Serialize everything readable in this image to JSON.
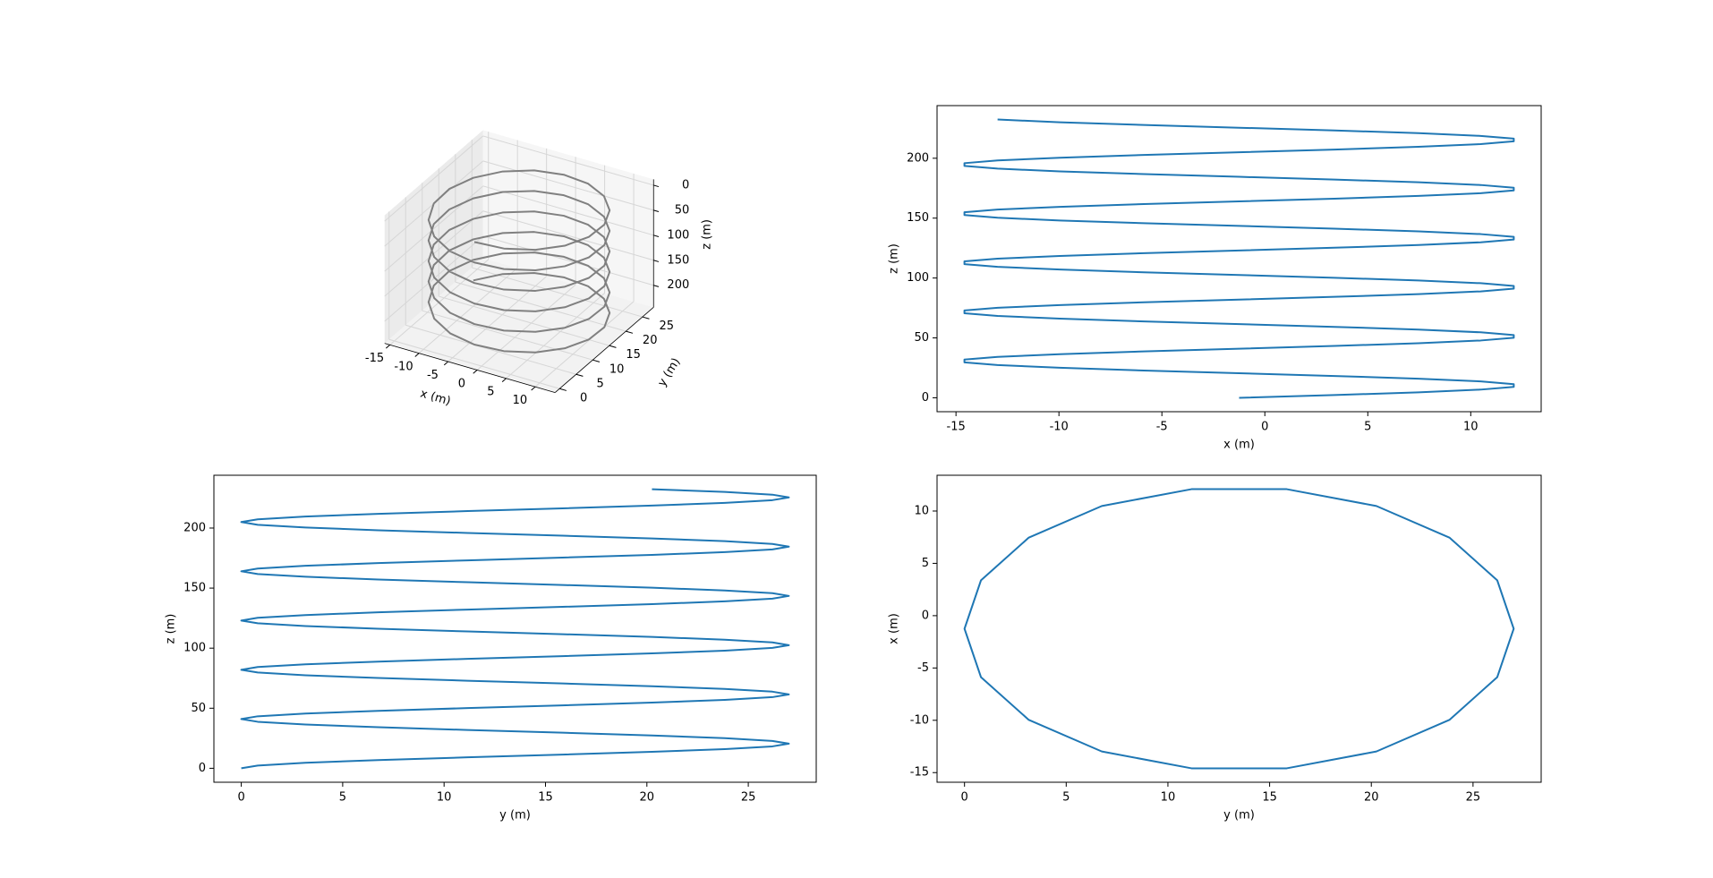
{
  "chart_data": [
    {
      "type": "line3d",
      "color": "#808080",
      "xlabel": "x (m)",
      "ylabel": "y (m)",
      "zlabel": "z (m)",
      "xlim": [
        -15.92,
        13.42
      ],
      "ylim": [
        -1.35,
        28.35
      ],
      "zlim": [
        -11.62,
        243.95
      ],
      "z_inverted": true,
      "xticks": [
        -15,
        -10,
        -5,
        0,
        5,
        10
      ],
      "yticks": [
        0,
        5,
        10,
        15,
        20,
        25
      ],
      "zticks": [
        0,
        50,
        100,
        150,
        200
      ],
      "x": [
        -1.25,
        3.38,
        7.46,
        10.48,
        12.09,
        12.09,
        10.48,
        7.46,
        3.38,
        -1.25,
        -5.88,
        -9.96,
        -12.98,
        -14.59,
        -14.59,
        -12.98,
        -9.96,
        -5.88,
        -1.25,
        3.38,
        7.46,
        10.48,
        12.09,
        12.09,
        10.48,
        7.46,
        3.38,
        -1.25,
        -5.88,
        -9.96,
        -12.98,
        -14.59,
        -14.59,
        -12.98,
        -9.96,
        -5.88,
        -1.25,
        3.38,
        7.46,
        10.48,
        12.09,
        12.09,
        10.48,
        7.46,
        3.38,
        -1.25,
        -5.88,
        -9.96,
        -12.98,
        -14.59,
        -14.59,
        -12.98,
        -9.96,
        -5.88,
        -1.25,
        3.38,
        7.46,
        10.48,
        12.09,
        12.09,
        10.48,
        7.46,
        3.38,
        -1.25,
        -5.88,
        -9.96,
        -12.98,
        -14.59,
        -14.59,
        -12.98,
        -9.96,
        -5.88,
        -1.25,
        3.38,
        7.46,
        10.48,
        12.09,
        12.09,
        10.48,
        7.46,
        3.38,
        -1.25,
        -5.88,
        -9.96,
        -12.98,
        -14.59,
        -14.59,
        -12.98,
        -9.96,
        -5.88,
        -1.25,
        3.38,
        7.46,
        10.48,
        12.09,
        12.09,
        10.48,
        7.46,
        3.38,
        -1.25,
        -5.88,
        -9.96,
        -12.98
      ],
      "y": [
        0,
        0.81,
        3.16,
        6.75,
        11.16,
        15.84,
        20.25,
        23.84,
        26.19,
        27,
        26.19,
        23.84,
        20.25,
        15.84,
        11.16,
        6.75,
        3.16,
        0.81,
        0,
        0.81,
        3.16,
        6.75,
        11.16,
        15.84,
        20.25,
        23.84,
        26.19,
        27,
        26.19,
        23.84,
        20.25,
        15.84,
        11.16,
        6.75,
        3.16,
        0.81,
        0,
        0.81,
        3.16,
        6.75,
        11.16,
        15.84,
        20.25,
        23.84,
        26.19,
        27,
        26.19,
        23.84,
        20.25,
        15.84,
        11.16,
        6.75,
        3.16,
        0.81,
        0,
        0.81,
        3.16,
        6.75,
        11.16,
        15.84,
        20.25,
        23.84,
        26.19,
        27,
        26.19,
        23.84,
        20.25,
        15.84,
        11.16,
        6.75,
        3.16,
        0.81,
        0,
        0.81,
        3.16,
        6.75,
        11.16,
        15.84,
        20.25,
        23.84,
        26.19,
        27,
        26.19,
        23.84,
        20.25,
        15.84,
        11.16,
        6.75,
        3.16,
        0.81,
        0,
        0.81,
        3.16,
        6.75,
        11.16,
        15.84,
        20.25,
        23.84,
        26.19,
        27,
        26.19,
        23.84,
        20.25
      ],
      "z": [
        0,
        2.28,
        4.56,
        6.83,
        9.11,
        11.39,
        13.67,
        15.94,
        18.22,
        20.5,
        22.78,
        25.06,
        27.33,
        29.61,
        31.89,
        34.17,
        36.44,
        38.72,
        41,
        43.28,
        45.56,
        47.83,
        50.11,
        52.39,
        54.67,
        56.94,
        59.22,
        61.5,
        63.78,
        66.06,
        68.33,
        70.61,
        72.89,
        75.17,
        77.44,
        79.72,
        82,
        84.28,
        86.56,
        88.83,
        91.11,
        93.39,
        95.67,
        97.94,
        100.22,
        102.5,
        104.78,
        107.06,
        109.33,
        111.61,
        113.89,
        116.17,
        118.44,
        120.72,
        123,
        125.28,
        127.56,
        129.83,
        132.11,
        134.39,
        136.67,
        138.94,
        141.22,
        143.5,
        145.78,
        148.06,
        150.33,
        152.61,
        154.89,
        157.17,
        159.44,
        161.72,
        164,
        166.28,
        168.56,
        170.83,
        173.11,
        175.39,
        177.67,
        179.94,
        182.22,
        184.5,
        186.78,
        189.06,
        191.33,
        193.61,
        195.89,
        198.17,
        200.44,
        202.72,
        205,
        207.28,
        209.56,
        211.83,
        214.11,
        216.39,
        218.67,
        220.94,
        223.22,
        225.5,
        227.78,
        230.06,
        232.33
      ]
    },
    {
      "type": "line",
      "xlabel": "x (m)",
      "ylabel": "z (m)",
      "xlim": [
        -15.92,
        13.42
      ],
      "ylim": [
        -11.62,
        243.95
      ],
      "xticks": [
        -15,
        -10,
        -5,
        0,
        5,
        10
      ],
      "yticks": [
        0,
        50,
        100,
        150,
        200
      ],
      "x": [
        -1.25,
        3.38,
        7.46,
        10.48,
        12.09,
        12.09,
        10.48,
        7.46,
        3.38,
        -1.25,
        -5.88,
        -9.96,
        -12.98,
        -14.59,
        -14.59,
        -12.98,
        -9.96,
        -5.88,
        -1.25,
        3.38,
        7.46,
        10.48,
        12.09,
        12.09,
        10.48,
        7.46,
        3.38,
        -1.25,
        -5.88,
        -9.96,
        -12.98,
        -14.59,
        -14.59,
        -12.98,
        -9.96,
        -5.88,
        -1.25,
        3.38,
        7.46,
        10.48,
        12.09,
        12.09,
        10.48,
        7.46,
        3.38,
        -1.25,
        -5.88,
        -9.96,
        -12.98,
        -14.59,
        -14.59,
        -12.98,
        -9.96,
        -5.88,
        -1.25,
        3.38,
        7.46,
        10.48,
        12.09,
        12.09,
        10.48,
        7.46,
        3.38,
        -1.25,
        -5.88,
        -9.96,
        -12.98,
        -14.59,
        -14.59,
        -12.98,
        -9.96,
        -5.88,
        -1.25,
        3.38,
        7.46,
        10.48,
        12.09,
        12.09,
        10.48,
        7.46,
        3.38,
        -1.25,
        -5.88,
        -9.96,
        -12.98,
        -14.59,
        -14.59,
        -12.98,
        -9.96,
        -5.88,
        -1.25,
        3.38,
        7.46,
        10.48,
        12.09,
        12.09,
        10.48,
        7.46,
        3.38,
        -1.25,
        -5.88,
        -9.96,
        -12.98
      ],
      "series": [
        {
          "color": "#1f77b4",
          "values": [
            0,
            2.28,
            4.56,
            6.83,
            9.11,
            11.39,
            13.67,
            15.94,
            18.22,
            20.5,
            22.78,
            25.06,
            27.33,
            29.61,
            31.89,
            34.17,
            36.44,
            38.72,
            41,
            43.28,
            45.56,
            47.83,
            50.11,
            52.39,
            54.67,
            56.94,
            59.22,
            61.5,
            63.78,
            66.06,
            68.33,
            70.61,
            72.89,
            75.17,
            77.44,
            79.72,
            82,
            84.28,
            86.56,
            88.83,
            91.11,
            93.39,
            95.67,
            97.94,
            100.22,
            102.5,
            104.78,
            107.06,
            109.33,
            111.61,
            113.89,
            116.17,
            118.44,
            120.72,
            123,
            125.28,
            127.56,
            129.83,
            132.11,
            134.39,
            136.67,
            138.94,
            141.22,
            143.5,
            145.78,
            148.06,
            150.33,
            152.61,
            154.89,
            157.17,
            159.44,
            161.72,
            164,
            166.28,
            168.56,
            170.83,
            173.11,
            175.39,
            177.67,
            179.94,
            182.22,
            184.5,
            186.78,
            189.06,
            191.33,
            193.61,
            195.89,
            198.17,
            200.44,
            202.72,
            205,
            207.28,
            209.56,
            211.83,
            214.11,
            216.39,
            218.67,
            220.94,
            223.22,
            225.5,
            227.78,
            230.06,
            232.33
          ]
        }
      ]
    },
    {
      "type": "line",
      "xlabel": "y (m)",
      "ylabel": "z (m)",
      "xlim": [
        -1.35,
        28.35
      ],
      "ylim": [
        -11.62,
        243.95
      ],
      "xticks": [
        0,
        5,
        10,
        15,
        20,
        25
      ],
      "yticks": [
        0,
        50,
        100,
        150,
        200
      ],
      "x": [
        0,
        0.81,
        3.16,
        6.75,
        11.16,
        15.84,
        20.25,
        23.84,
        26.19,
        27,
        26.19,
        23.84,
        20.25,
        15.84,
        11.16,
        6.75,
        3.16,
        0.81,
        0,
        0.81,
        3.16,
        6.75,
        11.16,
        15.84,
        20.25,
        23.84,
        26.19,
        27,
        26.19,
        23.84,
        20.25,
        15.84,
        11.16,
        6.75,
        3.16,
        0.81,
        0,
        0.81,
        3.16,
        6.75,
        11.16,
        15.84,
        20.25,
        23.84,
        26.19,
        27,
        26.19,
        23.84,
        20.25,
        15.84,
        11.16,
        6.75,
        3.16,
        0.81,
        0,
        0.81,
        3.16,
        6.75,
        11.16,
        15.84,
        20.25,
        23.84,
        26.19,
        27,
        26.19,
        23.84,
        20.25,
        15.84,
        11.16,
        6.75,
        3.16,
        0.81,
        0,
        0.81,
        3.16,
        6.75,
        11.16,
        15.84,
        20.25,
        23.84,
        26.19,
        27,
        26.19,
        23.84,
        20.25,
        15.84,
        11.16,
        6.75,
        3.16,
        0.81,
        0,
        0.81,
        3.16,
        6.75,
        11.16,
        15.84,
        20.25,
        23.84,
        26.19,
        27,
        26.19,
        23.84,
        20.25
      ],
      "series": [
        {
          "color": "#1f77b4",
          "values": [
            0,
            2.28,
            4.56,
            6.83,
            9.11,
            11.39,
            13.67,
            15.94,
            18.22,
            20.5,
            22.78,
            25.06,
            27.33,
            29.61,
            31.89,
            34.17,
            36.44,
            38.72,
            41,
            43.28,
            45.56,
            47.83,
            50.11,
            52.39,
            54.67,
            56.94,
            59.22,
            61.5,
            63.78,
            66.06,
            68.33,
            70.61,
            72.89,
            75.17,
            77.44,
            79.72,
            82,
            84.28,
            86.56,
            88.83,
            91.11,
            93.39,
            95.67,
            97.94,
            100.22,
            102.5,
            104.78,
            107.06,
            109.33,
            111.61,
            113.89,
            116.17,
            118.44,
            120.72,
            123,
            125.28,
            127.56,
            129.83,
            132.11,
            134.39,
            136.67,
            138.94,
            141.22,
            143.5,
            145.78,
            148.06,
            150.33,
            152.61,
            154.89,
            157.17,
            159.44,
            161.72,
            164,
            166.28,
            168.56,
            170.83,
            173.11,
            175.39,
            177.67,
            179.94,
            182.22,
            184.5,
            186.78,
            189.06,
            191.33,
            193.61,
            195.89,
            198.17,
            200.44,
            202.72,
            205,
            207.28,
            209.56,
            211.83,
            214.11,
            216.39,
            218.67,
            220.94,
            223.22,
            225.5,
            227.78,
            230.06,
            232.33
          ]
        }
      ]
    },
    {
      "type": "line",
      "xlabel": "y (m)",
      "ylabel": "x (m)",
      "xlim": [
        -1.35,
        28.35
      ],
      "ylim": [
        -15.92,
        13.42
      ],
      "xticks": [
        0,
        5,
        10,
        15,
        20,
        25
      ],
      "yticks": [
        -15,
        -10,
        -5,
        0,
        5,
        10
      ],
      "x": [
        0,
        0.81,
        3.16,
        6.75,
        11.16,
        15.84,
        20.25,
        23.84,
        26.19,
        27,
        26.19,
        23.84,
        20.25,
        15.84,
        11.16,
        6.75,
        3.16,
        0.81,
        0,
        0.81,
        3.16,
        6.75,
        11.16,
        15.84,
        20.25,
        23.84,
        26.19,
        27,
        26.19,
        23.84,
        20.25,
        15.84,
        11.16,
        6.75,
        3.16,
        0.81,
        0,
        0.81,
        3.16,
        6.75,
        11.16,
        15.84,
        20.25,
        23.84,
        26.19,
        27,
        26.19,
        23.84,
        20.25,
        15.84,
        11.16,
        6.75,
        3.16,
        0.81,
        0,
        0.81,
        3.16,
        6.75,
        11.16,
        15.84,
        20.25,
        23.84,
        26.19,
        27,
        26.19,
        23.84,
        20.25,
        15.84,
        11.16,
        6.75,
        3.16,
        0.81,
        0,
        0.81,
        3.16,
        6.75,
        11.16,
        15.84,
        20.25,
        23.84,
        26.19,
        27,
        26.19,
        23.84,
        20.25,
        15.84,
        11.16,
        6.75,
        3.16,
        0.81,
        0,
        0.81,
        3.16,
        6.75,
        11.16,
        15.84,
        20.25,
        23.84,
        26.19,
        27,
        26.19,
        23.84,
        20.25
      ],
      "series": [
        {
          "color": "#1f77b4",
          "values": [
            -1.25,
            3.38,
            7.46,
            10.48,
            12.09,
            12.09,
            10.48,
            7.46,
            3.38,
            -1.25,
            -5.88,
            -9.96,
            -12.98,
            -14.59,
            -14.59,
            -12.98,
            -9.96,
            -5.88,
            -1.25,
            3.38,
            7.46,
            10.48,
            12.09,
            12.09,
            10.48,
            7.46,
            3.38,
            -1.25,
            -5.88,
            -9.96,
            -12.98,
            -14.59,
            -14.59,
            -12.98,
            -9.96,
            -5.88,
            -1.25,
            3.38,
            7.46,
            10.48,
            12.09,
            12.09,
            10.48,
            7.46,
            3.38,
            -1.25,
            -5.88,
            -9.96,
            -12.98,
            -14.59,
            -14.59,
            -12.98,
            -9.96,
            -5.88,
            -1.25,
            3.38,
            7.46,
            10.48,
            12.09,
            12.09,
            10.48,
            7.46,
            3.38,
            -1.25,
            -5.88,
            -9.96,
            -12.98,
            -14.59,
            -14.59,
            -12.98,
            -9.96,
            -5.88,
            -1.25,
            3.38,
            7.46,
            10.48,
            12.09,
            12.09,
            10.48,
            7.46,
            3.38,
            -1.25,
            -5.88,
            -9.96,
            -12.98,
            -14.59,
            -14.59,
            -12.98,
            -9.96,
            -5.88,
            -1.25,
            3.38,
            7.46,
            10.48,
            12.09,
            12.09,
            10.48,
            7.46,
            3.38,
            -1.25,
            -5.88,
            -9.96,
            -12.98
          ]
        }
      ]
    }
  ]
}
